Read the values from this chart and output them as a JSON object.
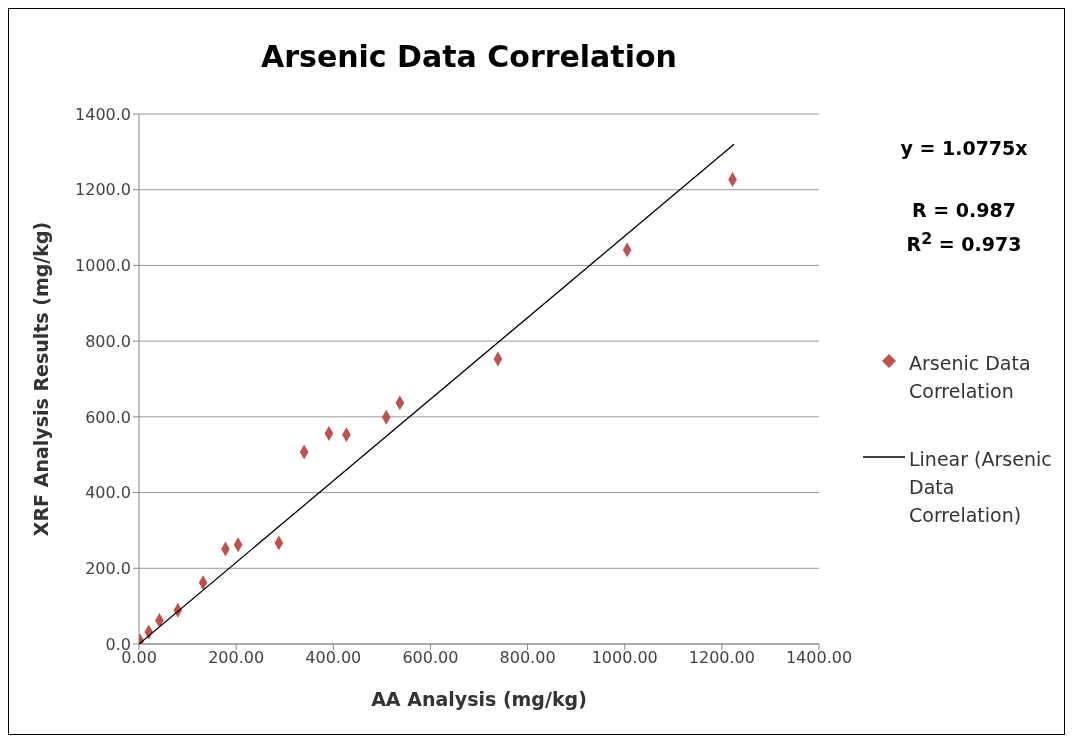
{
  "chart_data": {
    "type": "scatter",
    "title": "Arsenic Data Correlation",
    "xlabel": "AA Analysis (mg/kg)",
    "ylabel": "XRF Analysis Results (mg/kg)",
    "xlim": [
      0,
      1400
    ],
    "ylim": [
      0,
      1400
    ],
    "xticks": [
      {
        "value": 0,
        "label": "0.00"
      },
      {
        "value": 200,
        "label": "200.00"
      },
      {
        "value": 400,
        "label": "400.00"
      },
      {
        "value": 600,
        "label": "600.00"
      },
      {
        "value": 800,
        "label": "800.00"
      },
      {
        "value": 1000,
        "label": "1000.00"
      },
      {
        "value": 1200,
        "label": "1200.00"
      },
      {
        "value": 1400,
        "label": "1400.00"
      }
    ],
    "yticks": [
      {
        "value": 0,
        "label": "0.0"
      },
      {
        "value": 200,
        "label": "200.0"
      },
      {
        "value": 400,
        "label": "400.0"
      },
      {
        "value": 600,
        "label": "600.0"
      },
      {
        "value": 800,
        "label": "800.0"
      },
      {
        "value": 1000,
        "label": "1000.0"
      },
      {
        "value": 1200,
        "label": "1200.0"
      },
      {
        "value": 1400,
        "label": "1400.0"
      }
    ],
    "grid": "y",
    "legend": "right",
    "series": [
      {
        "name": "Arsenic Data Correlation",
        "color": "#c0504d",
        "marker": "diamond",
        "x": [
          2,
          20,
          42,
          80,
          132,
          178,
          204,
          288,
          340,
          391,
          427,
          509,
          537,
          739,
          1005,
          1222
        ],
        "values": [
          8,
          32,
          62,
          89,
          162,
          251,
          262,
          267,
          507,
          556,
          553,
          599,
          637,
          753,
          1041,
          1227
        ]
      },
      {
        "name": "Linear (Arsenic Data Correlation)",
        "type": "line",
        "marker": "none",
        "color": "#000000",
        "x": [
          0,
          1225
        ],
        "values": [
          0,
          1320
        ]
      }
    ],
    "annotations": [
      "y = 1.0775x",
      "R = 0.987",
      "R$^{2}$ = 0.973"
    ]
  }
}
